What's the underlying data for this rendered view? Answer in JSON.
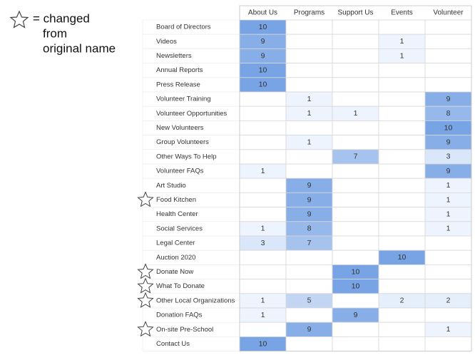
{
  "legend": {
    "lines": [
      "= changed",
      "from",
      "original name"
    ]
  },
  "table": {
    "columns": [
      "About Us",
      "Programs",
      "Support Us",
      "Events",
      "Volunteer"
    ],
    "rows": [
      {
        "label": "Board of Directors",
        "starred": false,
        "values": [
          10,
          null,
          null,
          null,
          null
        ]
      },
      {
        "label": "Videos",
        "starred": false,
        "values": [
          9,
          null,
          null,
          1,
          null
        ]
      },
      {
        "label": "Newsletters",
        "starred": false,
        "values": [
          9,
          null,
          null,
          1,
          null
        ]
      },
      {
        "label": "Annual Reports",
        "starred": false,
        "values": [
          10,
          null,
          null,
          null,
          null
        ]
      },
      {
        "label": "Press Release",
        "starred": false,
        "values": [
          10,
          null,
          null,
          null,
          null
        ]
      },
      {
        "label": "Volunteer Training",
        "starred": false,
        "values": [
          null,
          1,
          null,
          null,
          9
        ]
      },
      {
        "label": "Volunteer Opportunities",
        "starred": false,
        "values": [
          null,
          1,
          1,
          null,
          8
        ]
      },
      {
        "label": "New Volunteers",
        "starred": false,
        "values": [
          null,
          null,
          null,
          null,
          10
        ]
      },
      {
        "label": "Group Volunteers",
        "starred": false,
        "values": [
          null,
          1,
          null,
          null,
          9
        ]
      },
      {
        "label": "Other Ways To Help",
        "starred": false,
        "values": [
          null,
          null,
          7,
          null,
          3
        ]
      },
      {
        "label": "Volunteer FAQs",
        "starred": false,
        "values": [
          1,
          null,
          null,
          null,
          9
        ]
      },
      {
        "label": "Art Studio",
        "starred": false,
        "values": [
          null,
          9,
          null,
          null,
          1
        ]
      },
      {
        "label": "Food Kitchen",
        "starred": true,
        "values": [
          null,
          9,
          null,
          null,
          1
        ]
      },
      {
        "label": "Health Center",
        "starred": false,
        "values": [
          null,
          9,
          null,
          null,
          1
        ]
      },
      {
        "label": "Social Services",
        "starred": false,
        "values": [
          1,
          8,
          null,
          null,
          1
        ]
      },
      {
        "label": "Legal Center",
        "starred": false,
        "values": [
          3,
          7,
          null,
          null,
          null
        ]
      },
      {
        "label": "Auction 2020",
        "starred": false,
        "values": [
          null,
          null,
          null,
          10,
          null
        ]
      },
      {
        "label": "Donate Now",
        "starred": true,
        "values": [
          null,
          null,
          10,
          null,
          null
        ]
      },
      {
        "label": "What To Donate",
        "starred": true,
        "values": [
          null,
          null,
          10,
          null,
          null
        ]
      },
      {
        "label": "Other Local Organizations",
        "starred": true,
        "values": [
          1,
          5,
          null,
          2,
          2
        ]
      },
      {
        "label": "Donation FAQs",
        "starred": false,
        "values": [
          1,
          null,
          9,
          null,
          null
        ]
      },
      {
        "label": "On-site Pre-School",
        "starred": true,
        "values": [
          null,
          9,
          null,
          null,
          1
        ]
      },
      {
        "label": "Contact Us",
        "starred": false,
        "values": [
          10,
          null,
          null,
          null,
          null
        ]
      }
    ]
  }
}
